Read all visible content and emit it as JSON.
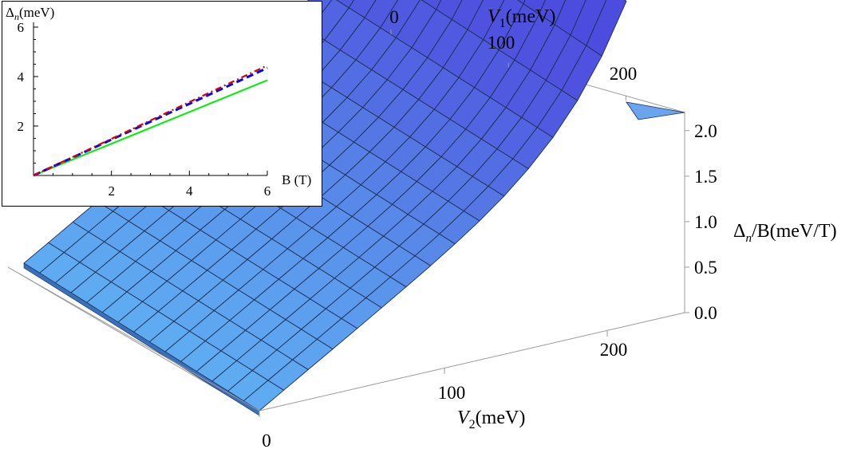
{
  "chart_data": [
    {
      "type": "surface",
      "x": {
        "name": "V1",
        "label_symbol": "V",
        "label_sub": "1",
        "label_unit": "(meV)",
        "ticks": [
          "0",
          "100",
          "200"
        ],
        "tick_values": [
          0,
          100,
          200
        ],
        "range": [
          0,
          250
        ]
      },
      "y": {
        "name": "V2",
        "label_symbol": "V",
        "label_sub": "2",
        "label_unit": "(meV)",
        "ticks": [
          "0",
          "100",
          "200"
        ],
        "tick_values": [
          0,
          100,
          200
        ],
        "range": [
          0,
          250
        ]
      },
      "z": {
        "label_symbol": "Δ",
        "label_sub": "n",
        "label_unit": "/B(meV/T)",
        "ticks": [
          "0.0",
          "0.5",
          "1.0",
          "1.5",
          "2.0"
        ],
        "tick_values": [
          0.0,
          0.5,
          1.0,
          1.5,
          2.0
        ],
        "range": [
          0,
          2.2
        ]
      },
      "grid_count": 15,
      "surface_samples": [
        {
          "V1": 0,
          "V2": 0,
          "value": 0.95
        },
        {
          "V1": 0,
          "V2": 250,
          "value": 0.97
        },
        {
          "V1": 125,
          "V2": 125,
          "value": 1.0
        },
        {
          "V1": 230,
          "V2": 0,
          "value": 2.05
        },
        {
          "V1": 250,
          "V2": 0,
          "value": 2.2
        },
        {
          "V1": 250,
          "V2": 250,
          "value": 2.2
        }
      ],
      "colors": {
        "surface_low": "#5aa8f0",
        "surface_high": "#4a4ee0",
        "mesh": "#1c2e55",
        "box": "#9a9a9a"
      }
    },
    {
      "type": "line",
      "inset": true,
      "xlabel": "B (T)",
      "ylabel_symbol": "Δ",
      "ylabel_sub": "n",
      "ylabel_unit": "(meV)",
      "xticks": [
        "2",
        "4",
        "6"
      ],
      "xtick_values": [
        2,
        4,
        6
      ],
      "yticks": [
        "2",
        "4",
        "6"
      ],
      "ytick_values": [
        2,
        4,
        6
      ],
      "xlim": [
        0,
        6
      ],
      "ylim": [
        0,
        6
      ],
      "series": [
        {
          "style": "solid",
          "color": "#00ee00",
          "x": [
            0,
            6
          ],
          "values": [
            0,
            3.85
          ]
        },
        {
          "style": "dashed",
          "color": "#0000ee",
          "x": [
            0,
            6
          ],
          "values": [
            0,
            4.35
          ]
        },
        {
          "style": "dashdot",
          "color": "#dd0000",
          "x": [
            0,
            6
          ],
          "values": [
            0,
            4.45
          ]
        }
      ]
    }
  ]
}
